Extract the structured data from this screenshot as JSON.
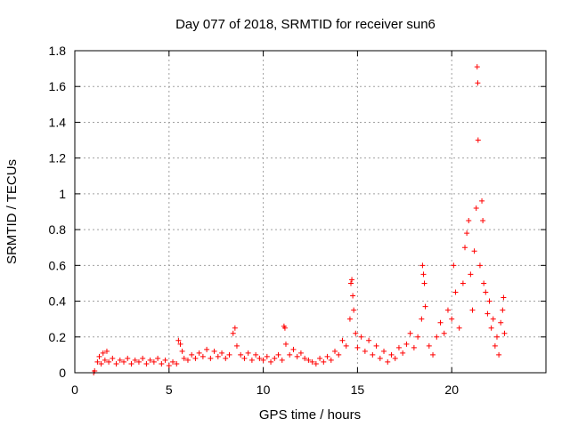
{
  "chart_data": {
    "type": "scatter",
    "title": "Day 077 of 2018, SRMTID for receiver sun6",
    "xlabel": "GPS time / hours",
    "ylabel": "SRMTID / TECUs",
    "xlim": [
      0,
      25
    ],
    "ylim": [
      0,
      1.8
    ],
    "xticks": [
      0,
      5,
      10,
      15,
      20
    ],
    "xtick_labels": [
      "0",
      "5",
      "10",
      "15",
      "20"
    ],
    "yticks": [
      0,
      0.2,
      0.4,
      0.6,
      0.8,
      1.0,
      1.2,
      1.4,
      1.6,
      1.8
    ],
    "ytick_labels": [
      "0",
      "0.2",
      "0.4",
      "0.6",
      "0.8",
      "1",
      "1.2",
      "1.4",
      "1.6",
      "1.8"
    ],
    "grid": true,
    "marker": "+",
    "color": "#ff0000",
    "series": [
      {
        "name": "SRMTID",
        "points": [
          [
            1.0,
            0.0
          ],
          [
            1.05,
            0.01
          ],
          [
            1.2,
            0.06
          ],
          [
            1.3,
            0.09
          ],
          [
            1.4,
            0.05
          ],
          [
            1.5,
            0.11
          ],
          [
            1.6,
            0.07
          ],
          [
            1.7,
            0.12
          ],
          [
            1.8,
            0.06
          ],
          [
            2.0,
            0.08
          ],
          [
            2.2,
            0.05
          ],
          [
            2.4,
            0.07
          ],
          [
            2.6,
            0.06
          ],
          [
            2.8,
            0.08
          ],
          [
            3.0,
            0.05
          ],
          [
            3.2,
            0.07
          ],
          [
            3.4,
            0.06
          ],
          [
            3.6,
            0.08
          ],
          [
            3.8,
            0.05
          ],
          [
            4.0,
            0.07
          ],
          [
            4.2,
            0.06
          ],
          [
            4.4,
            0.08
          ],
          [
            4.6,
            0.05
          ],
          [
            4.8,
            0.07
          ],
          [
            5.0,
            0.04
          ],
          [
            5.2,
            0.06
          ],
          [
            5.4,
            0.05
          ],
          [
            5.5,
            0.18
          ],
          [
            5.6,
            0.16
          ],
          [
            5.7,
            0.12
          ],
          [
            5.8,
            0.08
          ],
          [
            6.0,
            0.07
          ],
          [
            6.2,
            0.1
          ],
          [
            6.4,
            0.08
          ],
          [
            6.6,
            0.11
          ],
          [
            6.8,
            0.09
          ],
          [
            7.0,
            0.13
          ],
          [
            7.2,
            0.08
          ],
          [
            7.4,
            0.12
          ],
          [
            7.6,
            0.09
          ],
          [
            7.8,
            0.11
          ],
          [
            8.0,
            0.08
          ],
          [
            8.2,
            0.1
          ],
          [
            8.4,
            0.22
          ],
          [
            8.5,
            0.25
          ],
          [
            8.6,
            0.15
          ],
          [
            8.8,
            0.1
          ],
          [
            9.0,
            0.08
          ],
          [
            9.2,
            0.11
          ],
          [
            9.4,
            0.07
          ],
          [
            9.6,
            0.1
          ],
          [
            9.8,
            0.08
          ],
          [
            10.0,
            0.07
          ],
          [
            10.2,
            0.09
          ],
          [
            10.4,
            0.06
          ],
          [
            10.6,
            0.08
          ],
          [
            10.8,
            0.1
          ],
          [
            11.0,
            0.07
          ],
          [
            11.1,
            0.26
          ],
          [
            11.15,
            0.25
          ],
          [
            11.2,
            0.16
          ],
          [
            11.4,
            0.1
          ],
          [
            11.6,
            0.13
          ],
          [
            11.8,
            0.09
          ],
          [
            12.0,
            0.11
          ],
          [
            12.2,
            0.08
          ],
          [
            12.4,
            0.07
          ],
          [
            12.6,
            0.06
          ],
          [
            12.8,
            0.05
          ],
          [
            13.0,
            0.08
          ],
          [
            13.2,
            0.06
          ],
          [
            13.4,
            0.09
          ],
          [
            13.6,
            0.07
          ],
          [
            13.8,
            0.12
          ],
          [
            14.0,
            0.1
          ],
          [
            14.2,
            0.18
          ],
          [
            14.4,
            0.15
          ],
          [
            14.6,
            0.3
          ],
          [
            14.65,
            0.5
          ],
          [
            14.7,
            0.52
          ],
          [
            14.75,
            0.43
          ],
          [
            14.8,
            0.35
          ],
          [
            14.9,
            0.22
          ],
          [
            15.0,
            0.14
          ],
          [
            15.2,
            0.2
          ],
          [
            15.4,
            0.12
          ],
          [
            15.6,
            0.18
          ],
          [
            15.8,
            0.1
          ],
          [
            16.0,
            0.15
          ],
          [
            16.2,
            0.08
          ],
          [
            16.4,
            0.12
          ],
          [
            16.6,
            0.06
          ],
          [
            16.8,
            0.1
          ],
          [
            17.0,
            0.08
          ],
          [
            17.2,
            0.14
          ],
          [
            17.4,
            0.11
          ],
          [
            17.6,
            0.16
          ],
          [
            17.8,
            0.22
          ],
          [
            18.0,
            0.14
          ],
          [
            18.2,
            0.2
          ],
          [
            18.4,
            0.3
          ],
          [
            18.45,
            0.6
          ],
          [
            18.5,
            0.55
          ],
          [
            18.55,
            0.5
          ],
          [
            18.6,
            0.37
          ],
          [
            18.8,
            0.15
          ],
          [
            19.0,
            0.1
          ],
          [
            19.2,
            0.2
          ],
          [
            19.4,
            0.28
          ],
          [
            19.6,
            0.22
          ],
          [
            19.8,
            0.35
          ],
          [
            20.0,
            0.3
          ],
          [
            20.1,
            0.6
          ],
          [
            20.2,
            0.45
          ],
          [
            20.4,
            0.25
          ],
          [
            20.6,
            0.5
          ],
          [
            20.7,
            0.7
          ],
          [
            20.8,
            0.78
          ],
          [
            20.9,
            0.85
          ],
          [
            21.0,
            0.55
          ],
          [
            21.1,
            0.35
          ],
          [
            21.2,
            0.68
          ],
          [
            21.3,
            0.92
          ],
          [
            21.35,
            1.71
          ],
          [
            21.38,
            1.62
          ],
          [
            21.4,
            1.3
          ],
          [
            21.5,
            0.6
          ],
          [
            21.6,
            0.96
          ],
          [
            21.65,
            0.85
          ],
          [
            21.7,
            0.5
          ],
          [
            21.8,
            0.45
          ],
          [
            21.9,
            0.33
          ],
          [
            22.0,
            0.4
          ],
          [
            22.1,
            0.25
          ],
          [
            22.2,
            0.3
          ],
          [
            22.3,
            0.15
          ],
          [
            22.4,
            0.2
          ],
          [
            22.5,
            0.1
          ],
          [
            22.6,
            0.28
          ],
          [
            22.7,
            0.35
          ],
          [
            22.75,
            0.42
          ],
          [
            22.8,
            0.22
          ]
        ]
      }
    ]
  }
}
